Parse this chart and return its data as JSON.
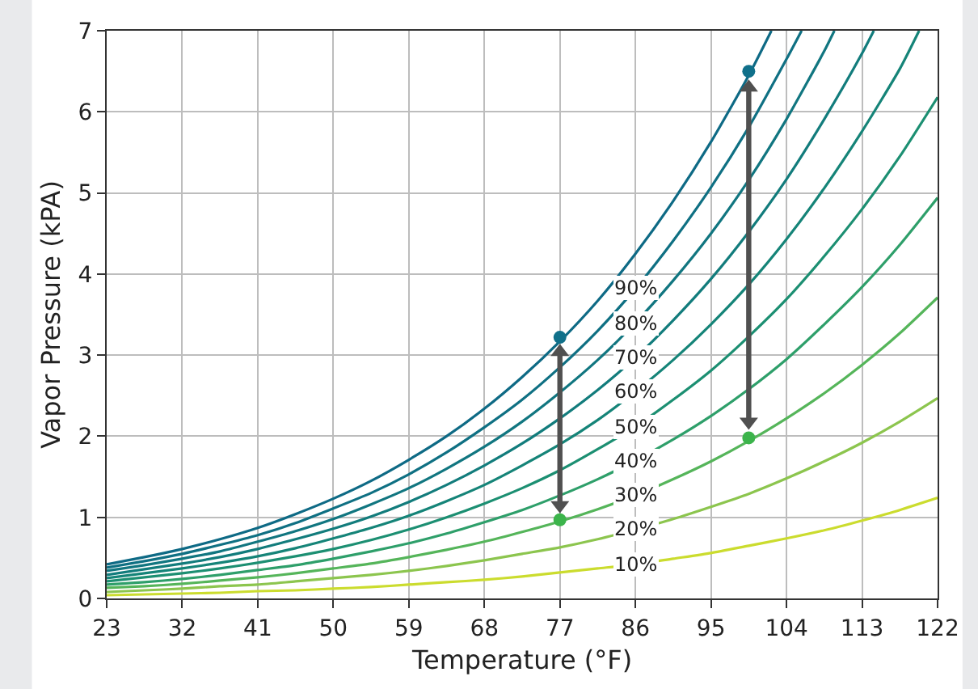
{
  "chart_data": {
    "type": "line",
    "xlabel": "Temperature (°F)",
    "ylabel": "Vapor Pressure (kPA)",
    "xlim": [
      23,
      122
    ],
    "xticks": [
      23,
      32,
      41,
      50,
      59,
      68,
      77,
      86,
      95,
      104,
      113,
      122
    ],
    "ylim": [
      0,
      7
    ],
    "yticks": [
      0,
      1,
      2,
      3,
      4,
      5,
      6,
      7
    ],
    "grid": true,
    "legend": false,
    "marker": "none",
    "line_style": "solid",
    "x": [
      23,
      27.5,
      32,
      36.5,
      41,
      45.5,
      50,
      54.5,
      59,
      63.5,
      68,
      72.5,
      77,
      81.5,
      86,
      90.5,
      95,
      99.5,
      104,
      108.5,
      113,
      117.5,
      122
    ],
    "series": [
      {
        "name": "10%",
        "color": "#cbdc2e",
        "values": [
          0.04,
          0.05,
          0.06,
          0.07,
          0.09,
          0.1,
          0.12,
          0.14,
          0.17,
          0.2,
          0.23,
          0.27,
          0.32,
          0.37,
          0.42,
          0.49,
          0.56,
          0.65,
          0.74,
          0.84,
          0.96,
          1.09,
          1.24
        ]
      },
      {
        "name": "20%",
        "color": "#8cc54e",
        "values": [
          0.08,
          0.1,
          0.12,
          0.15,
          0.17,
          0.21,
          0.25,
          0.29,
          0.34,
          0.4,
          0.47,
          0.55,
          0.63,
          0.73,
          0.85,
          0.98,
          1.13,
          1.29,
          1.48,
          1.69,
          1.92,
          2.18,
          2.47
        ]
      },
      {
        "name": "30%",
        "color": "#55b55a",
        "values": [
          0.13,
          0.15,
          0.18,
          0.22,
          0.26,
          0.31,
          0.37,
          0.43,
          0.51,
          0.6,
          0.7,
          0.82,
          0.95,
          1.1,
          1.27,
          1.47,
          1.69,
          1.94,
          2.22,
          2.53,
          2.88,
          3.27,
          3.71
        ]
      },
      {
        "name": "40%",
        "color": "#2e9f6a",
        "values": [
          0.17,
          0.2,
          0.24,
          0.29,
          0.35,
          0.41,
          0.49,
          0.58,
          0.68,
          0.8,
          0.94,
          1.09,
          1.27,
          1.47,
          1.7,
          1.96,
          2.25,
          2.58,
          2.95,
          3.38,
          3.84,
          4.36,
          4.94
        ]
      },
      {
        "name": "50%",
        "color": "#1c8f72",
        "values": [
          0.21,
          0.26,
          0.31,
          0.37,
          0.44,
          0.52,
          0.61,
          0.72,
          0.85,
          1.0,
          1.17,
          1.36,
          1.58,
          1.84,
          2.12,
          2.45,
          2.81,
          3.23,
          3.69,
          4.22,
          4.8,
          5.45,
          6.18
        ]
      },
      {
        "name": "60%",
        "color": "#158478",
        "x": [
          23,
          27.5,
          32,
          36.5,
          41,
          45.5,
          50,
          54.5,
          59,
          63.5,
          68,
          72.5,
          77,
          81.5,
          86,
          90.5,
          95,
          99.5,
          104,
          108.5,
          113,
          117.5,
          119.8
        ],
        "values": [
          0.25,
          0.31,
          0.37,
          0.44,
          0.52,
          0.62,
          0.74,
          0.87,
          1.02,
          1.2,
          1.4,
          1.64,
          1.9,
          2.2,
          2.55,
          2.94,
          3.38,
          3.87,
          4.43,
          5.06,
          5.76,
          6.53,
          7.0
        ]
      },
      {
        "name": "70%",
        "color": "#127c7c",
        "x": [
          23,
          27.5,
          32,
          36.5,
          41,
          45.5,
          50,
          54.5,
          59,
          63.5,
          68,
          72.5,
          77,
          81.5,
          86,
          90.5,
          95,
          99.5,
          104,
          108.5,
          113,
          114.4
        ],
        "values": [
          0.29,
          0.36,
          0.43,
          0.51,
          0.61,
          0.73,
          0.86,
          1.01,
          1.19,
          1.4,
          1.64,
          1.91,
          2.22,
          2.57,
          2.97,
          3.43,
          3.94,
          4.52,
          5.17,
          5.91,
          6.72,
          7.0
        ]
      },
      {
        "name": "80%",
        "color": "#117680",
        "x": [
          23,
          27.5,
          32,
          36.5,
          41,
          45.5,
          50,
          54.5,
          59,
          63.5,
          68,
          72.5,
          77,
          81.5,
          86,
          90.5,
          95,
          99.5,
          104,
          108.5,
          109.7
        ],
        "values": [
          0.34,
          0.41,
          0.49,
          0.58,
          0.7,
          0.83,
          0.98,
          1.16,
          1.36,
          1.6,
          1.87,
          2.18,
          2.54,
          2.94,
          3.4,
          3.92,
          4.5,
          5.16,
          5.91,
          6.75,
          7.0
        ]
      },
      {
        "name": "90%",
        "color": "#0f7083",
        "x": [
          23,
          27.5,
          32,
          36.5,
          41,
          45.5,
          50,
          54.5,
          59,
          63.5,
          68,
          72.5,
          77,
          81.5,
          86,
          90.5,
          95,
          99.5,
          104,
          105.8
        ],
        "values": [
          0.38,
          0.46,
          0.55,
          0.66,
          0.78,
          0.93,
          1.11,
          1.3,
          1.53,
          1.8,
          2.11,
          2.45,
          2.85,
          3.3,
          3.82,
          4.41,
          5.07,
          5.81,
          6.65,
          7.0
        ]
      },
      {
        "color": "#0e6a85",
        "x": [
          23,
          27.5,
          32,
          36.5,
          41,
          45.5,
          50,
          54.5,
          59,
          63.5,
          68,
          72.5,
          77,
          81.5,
          86,
          90.5,
          95,
          99.5,
          102.2
        ],
        "values": [
          0.42,
          0.51,
          0.61,
          0.73,
          0.87,
          1.04,
          1.23,
          1.45,
          1.71,
          2.0,
          2.34,
          2.73,
          3.17,
          3.67,
          4.25,
          4.9,
          5.63,
          6.45,
          7.0
        ]
      },
      {
        "type": "scatter",
        "marker": "circle",
        "color": "#10708a",
        "x": [
          77,
          99.5
        ],
        "values": [
          3.22,
          6.5
        ]
      },
      {
        "type": "scatter",
        "marker": "circle",
        "color": "#3cb44b",
        "x": [
          77,
          99.5
        ],
        "values": [
          0.97,
          1.98
        ]
      },
      {
        "marker": "triangle",
        "color": "#505050",
        "x": [
          77,
          77
        ],
        "values": [
          1.15,
          3.04
        ]
      },
      {
        "marker": "triangle",
        "color": "#505050",
        "x": [
          99.5,
          99.5
        ],
        "values": [
          2.18,
          6.3
        ]
      }
    ]
  }
}
